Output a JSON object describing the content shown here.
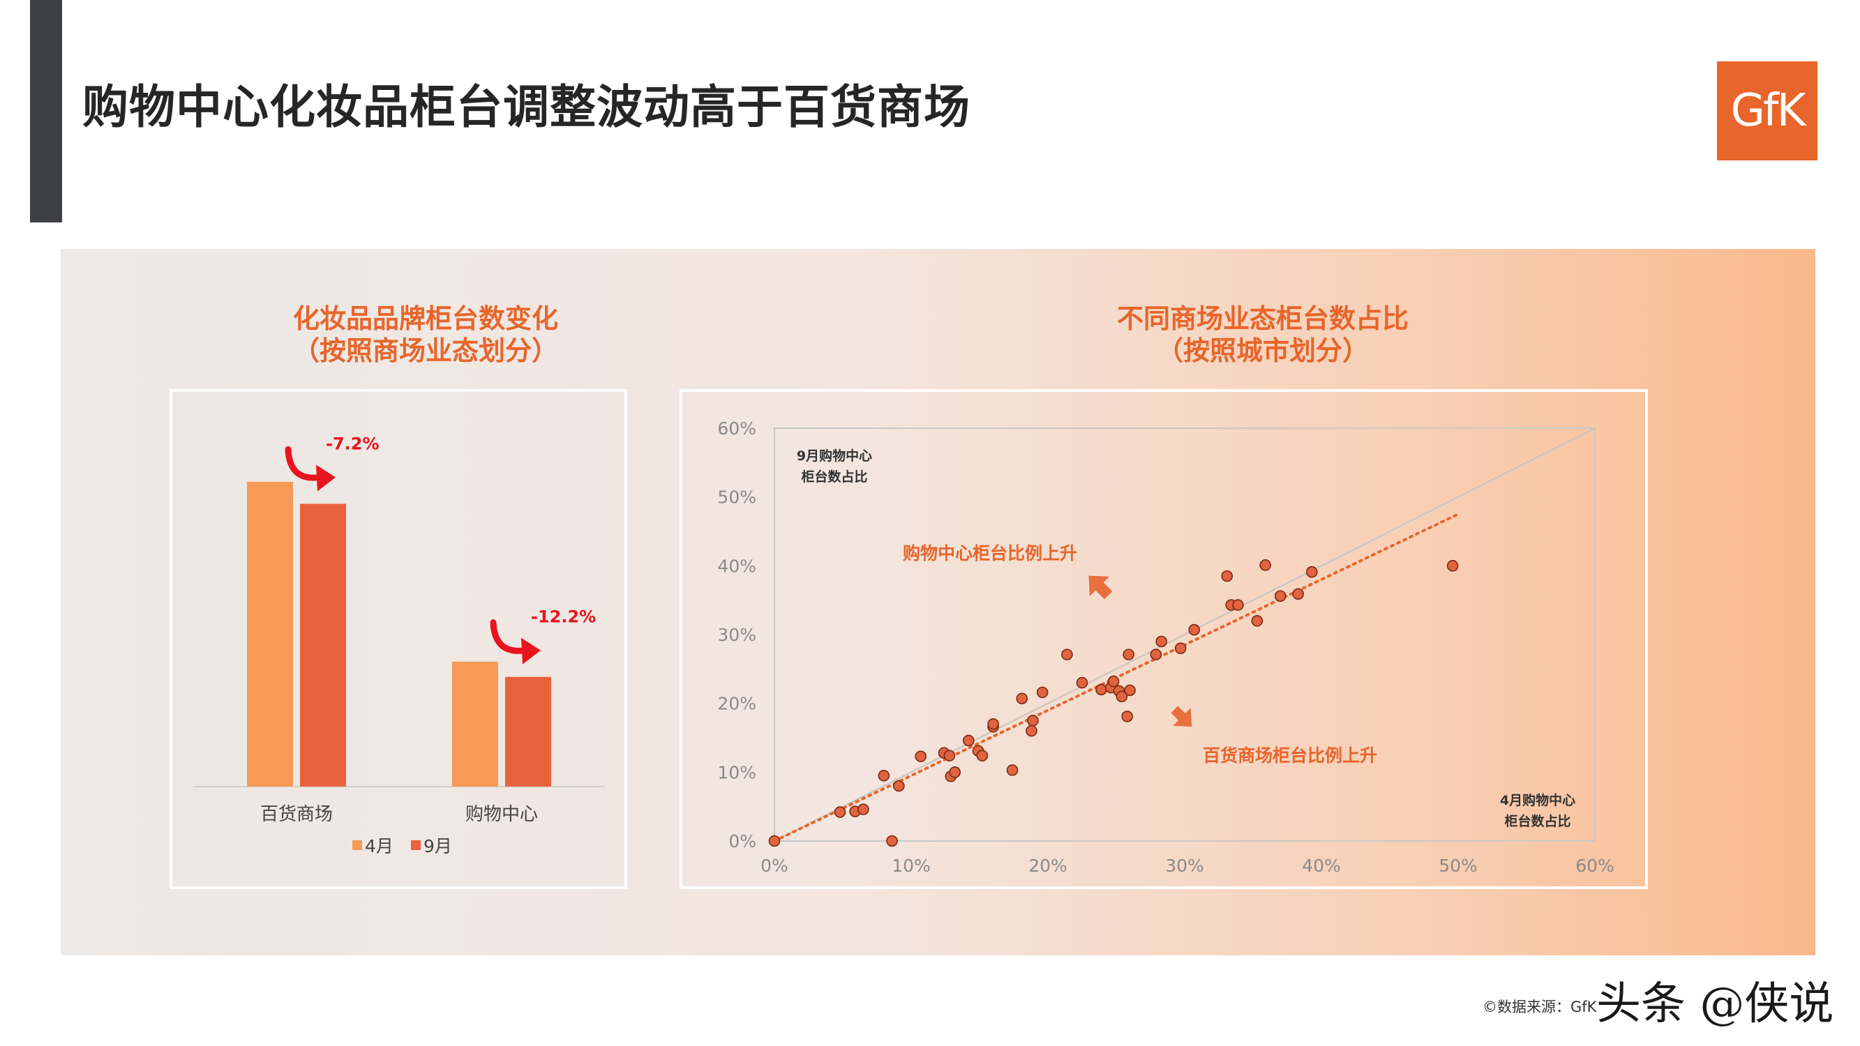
{
  "header": {
    "title": "购物中心化妆品柜台调整波动高于百货商场"
  },
  "logo": {
    "text": "GfK"
  },
  "bar_chart": {
    "title_line1": "化妆品品牌柜台数变化",
    "title_line2": "（按照商场业态划分）",
    "colors": {
      "apr": "#f79a57",
      "sep": "#e8623e",
      "arrow": "#e8141e"
    }
  },
  "scatter_chart": {
    "title_line1": "不同商场业态柜台数占比",
    "title_line2": "（按照城市划分）",
    "y_axis_label_line1": "9月购物中心",
    "y_axis_label_line2": "柜台数占比",
    "x_axis_label_line1": "4月购物中心",
    "x_axis_label_line2": "柜台数占比",
    "annotation_up": "购物中心柜台比例上升",
    "annotation_down": "百货商场柜台比例上升",
    "colors": {
      "point": "#e0643f",
      "point_stroke": "#7a2a14",
      "trend": "#e8652b",
      "annotation": "#e8652b"
    }
  },
  "chart_data": [
    {
      "type": "bar",
      "categories": [
        "百货商场",
        "购物中心"
      ],
      "series": [
        {
          "name": "4月",
          "values": [
            100,
            41
          ]
        },
        {
          "name": "9月",
          "values": [
            92.8,
            36
          ]
        }
      ],
      "annotations": [
        "-7.2%",
        "-12.2%"
      ],
      "ylim": [
        0,
        110
      ]
    },
    {
      "type": "scatter",
      "xlabel": "4月购物中心柜台数占比",
      "ylabel": "9月购物中心柜台数占比",
      "xlim": [
        0,
        60
      ],
      "ylim": [
        0,
        60
      ],
      "x_ticks": [
        "0%",
        "10%",
        "20%",
        "30%",
        "40%",
        "50%",
        "60%"
      ],
      "y_ticks": [
        "0%",
        "10%",
        "20%",
        "30%",
        "40%",
        "50%",
        "60%"
      ],
      "points": [
        [
          0,
          0
        ],
        [
          4.8,
          4.2
        ],
        [
          5.9,
          4.3
        ],
        [
          6.5,
          4.6
        ],
        [
          8.0,
          9.5
        ],
        [
          8.6,
          0
        ],
        [
          9.1,
          8.0
        ],
        [
          10.7,
          12.3
        ],
        [
          12.4,
          12.8
        ],
        [
          12.8,
          12.4
        ],
        [
          12.9,
          9.4
        ],
        [
          13.2,
          10.0
        ],
        [
          14.2,
          14.6
        ],
        [
          14.9,
          13.1
        ],
        [
          15.2,
          12.4
        ],
        [
          16.0,
          16.6
        ],
        [
          16.0,
          17.0
        ],
        [
          17.4,
          10.3
        ],
        [
          18.1,
          20.7
        ],
        [
          18.8,
          16.0
        ],
        [
          18.9,
          17.5
        ],
        [
          19.6,
          21.6
        ],
        [
          21.4,
          27.1
        ],
        [
          22.5,
          23.0
        ],
        [
          23.9,
          22.0
        ],
        [
          24.6,
          22.3
        ],
        [
          24.8,
          23.2
        ],
        [
          25.2,
          21.8
        ],
        [
          25.4,
          21.0
        ],
        [
          25.8,
          18.1
        ],
        [
          25.9,
          27.1
        ],
        [
          26.0,
          21.9
        ],
        [
          27.9,
          27.1
        ],
        [
          28.3,
          29.0
        ],
        [
          29.7,
          28.0
        ],
        [
          30.7,
          30.7
        ],
        [
          33.1,
          38.5
        ],
        [
          33.4,
          34.3
        ],
        [
          33.9,
          34.3
        ],
        [
          35.3,
          32.0
        ],
        [
          35.9,
          40.1
        ],
        [
          37.0,
          35.6
        ],
        [
          38.3,
          35.9
        ],
        [
          39.3,
          39.1
        ],
        [
          49.6,
          40.0
        ]
      ],
      "trend_line": {
        "x": [
          0,
          50
        ],
        "y": [
          0,
          47.5
        ]
      },
      "reference_line": {
        "x": [
          0,
          60
        ],
        "y": [
          0,
          60
        ]
      }
    }
  ],
  "footer": {
    "source": "©数据来源：GfK",
    "watermark": "头条 @侠说"
  }
}
